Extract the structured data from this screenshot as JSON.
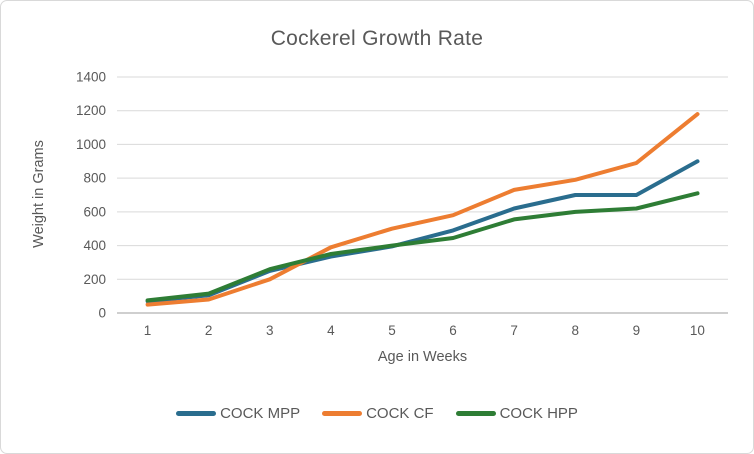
{
  "chart_data": {
    "type": "line",
    "title": "Cockerel Growth Rate",
    "xlabel": "Age in Weeks",
    "ylabel": "Weight in Grams",
    "categories": [
      "1",
      "2",
      "3",
      "4",
      "5",
      "6",
      "7",
      "8",
      "9",
      "10"
    ],
    "ylim": [
      0,
      1400
    ],
    "ytick_step": 200,
    "yticks": [
      0,
      200,
      400,
      600,
      800,
      1000,
      1200,
      1400
    ],
    "grid": "horizontal",
    "legend_position": "bottom",
    "series": [
      {
        "name": "COCK MPP",
        "color": "#2A6D8E",
        "values": [
          70,
          105,
          250,
          335,
          395,
          490,
          620,
          700,
          700,
          900
        ]
      },
      {
        "name": "COCK CF",
        "color": "#ED7D31",
        "values": [
          50,
          80,
          200,
          390,
          500,
          580,
          730,
          790,
          890,
          1180
        ]
      },
      {
        "name": "COCK HPP",
        "color": "#2E7D35",
        "values": [
          75,
          115,
          260,
          350,
          400,
          445,
          555,
          600,
          620,
          710
        ]
      }
    ]
  },
  "style": {
    "text_color": "#595959",
    "gridline_color": "#d9d9d9",
    "axis_line_color": "#bfbfbf",
    "border_color": "#d9d9d9",
    "background": "#ffffff"
  }
}
